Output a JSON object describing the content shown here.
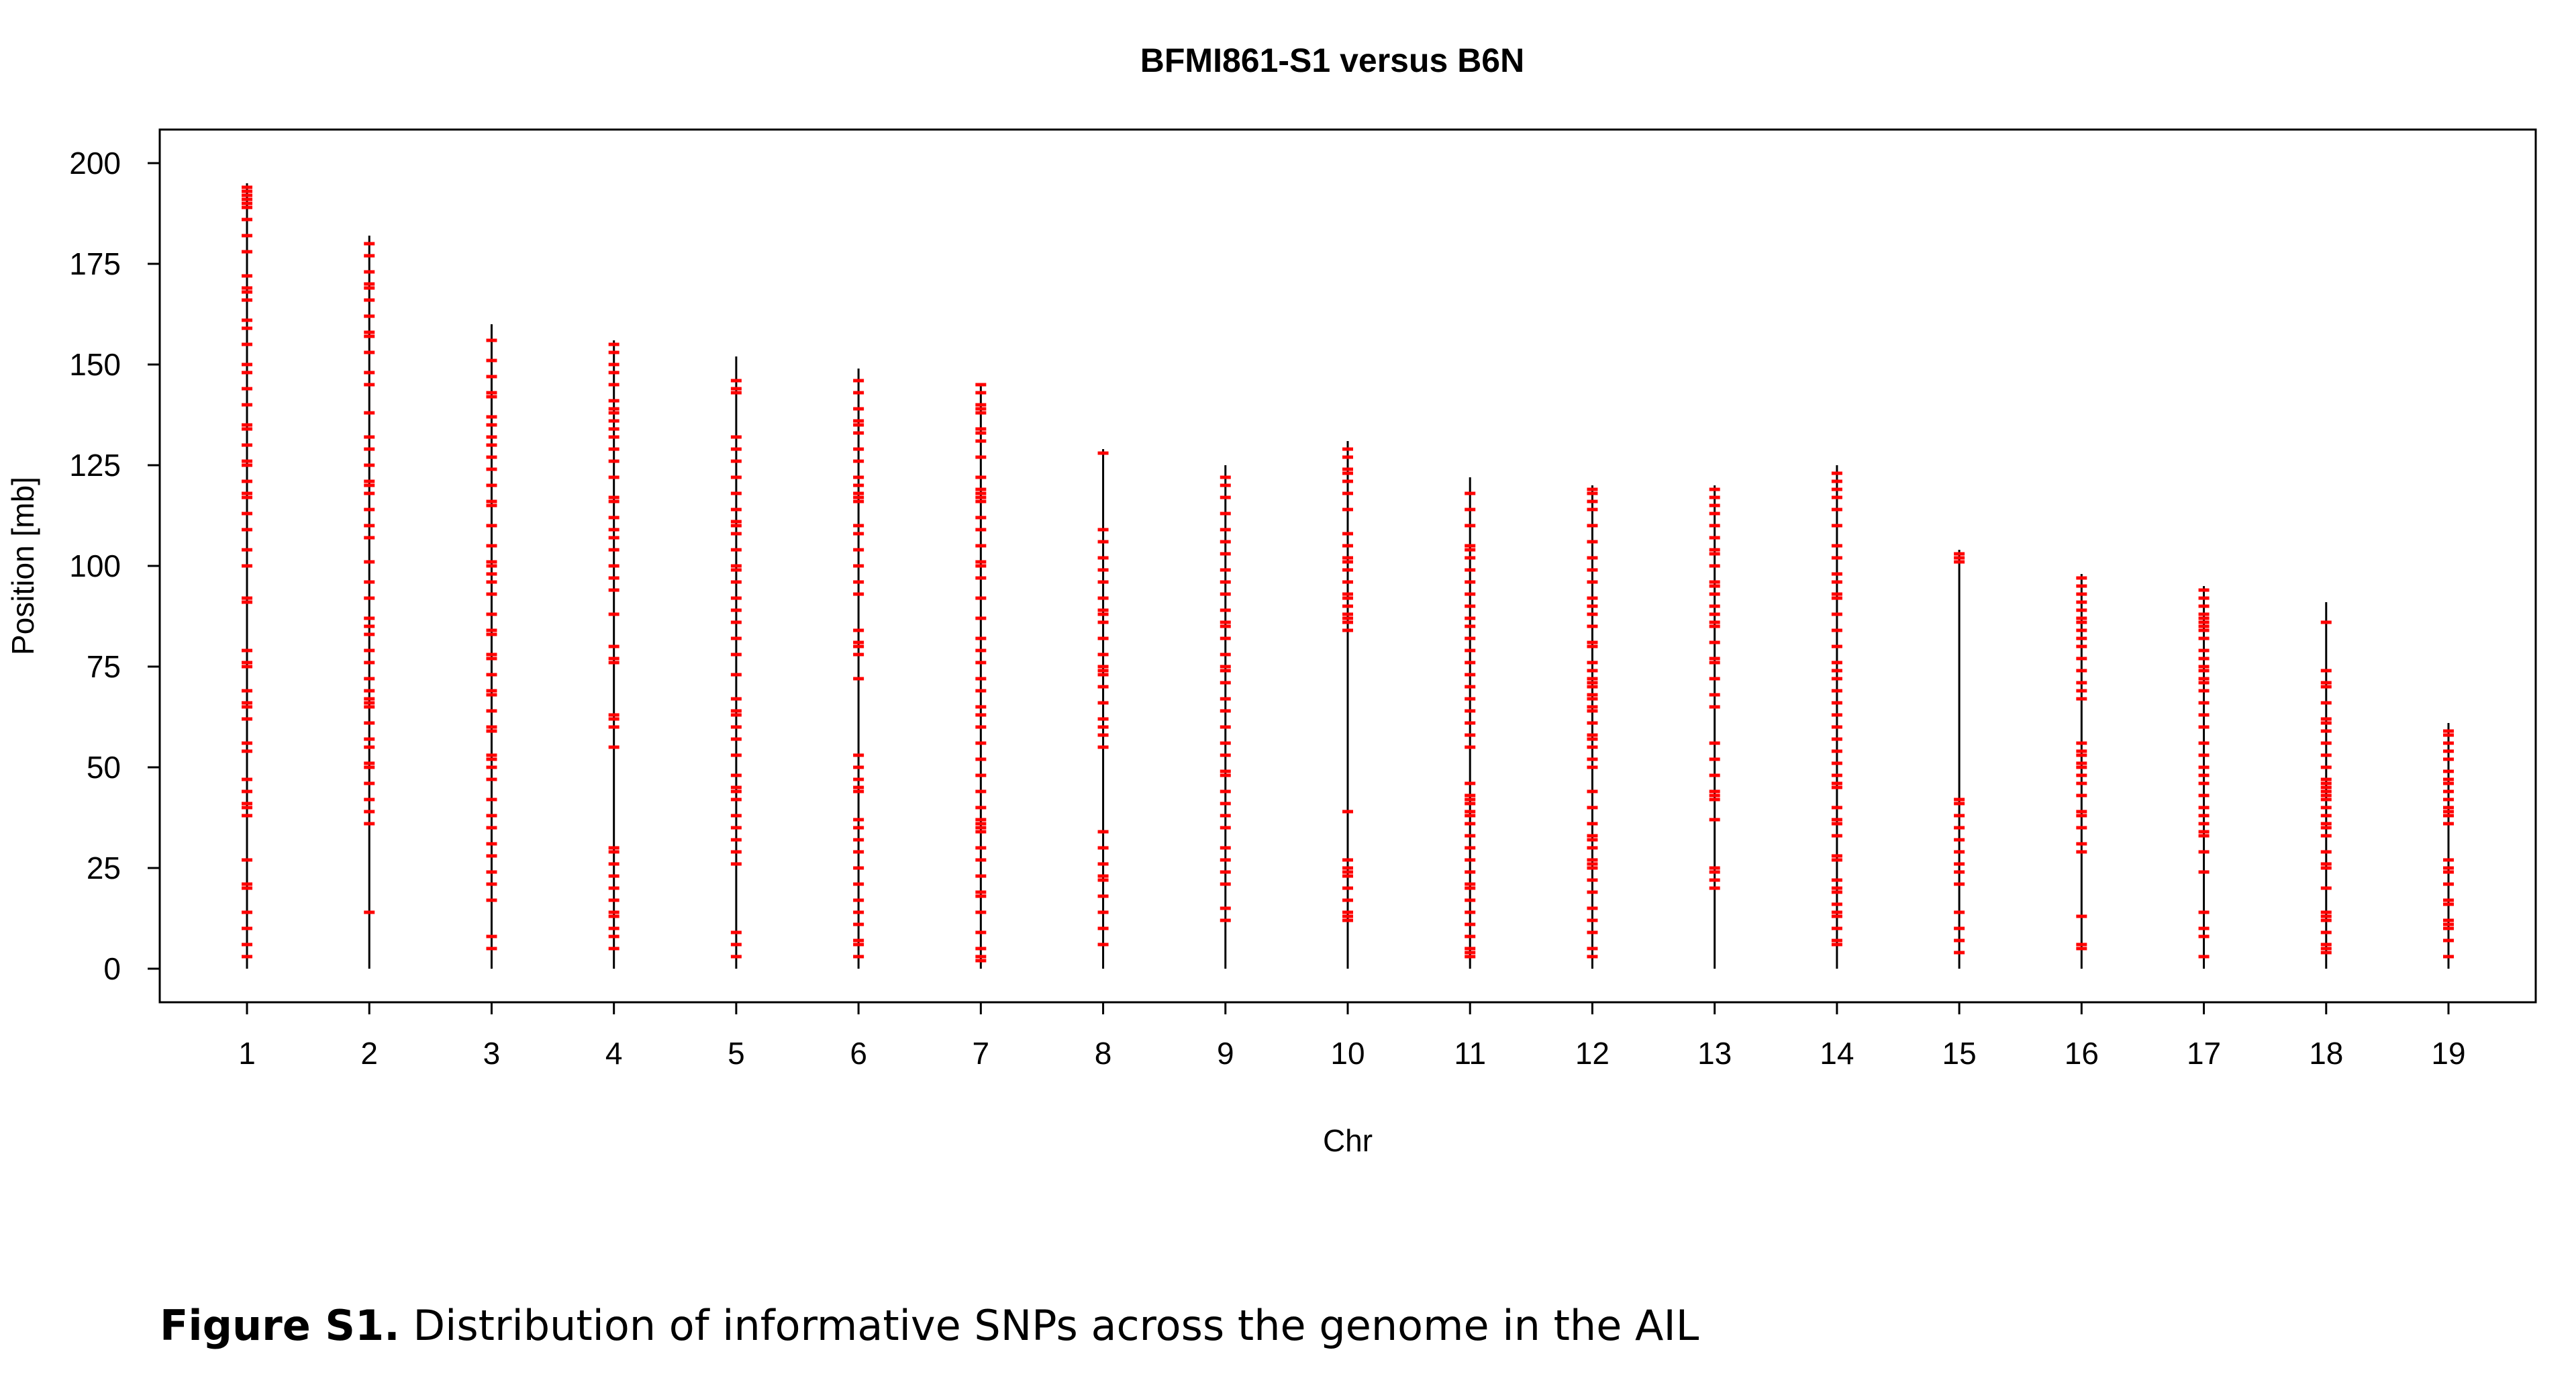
{
  "chart_data": {
    "type": "scatter",
    "title": "BFMI861-S1 versus B6N",
    "xlabel": "Chr",
    "ylabel": "Position [mb]",
    "ylim": [
      0,
      200
    ],
    "yticks": [
      0,
      25,
      50,
      75,
      100,
      125,
      150,
      175,
      200
    ],
    "grid": false,
    "legend": "none",
    "colors": {
      "chromosome": "#000000",
      "snp": "#ff0000"
    },
    "chromosomes": [
      {
        "chr": "1",
        "length": 195,
        "snps": [
          3,
          6,
          10,
          14,
          20,
          21,
          27,
          38,
          40,
          41,
          44,
          47,
          54,
          56,
          62,
          65,
          66,
          69,
          75,
          76,
          79,
          91,
          92,
          100,
          104,
          109,
          113,
          117,
          118,
          121,
          125,
          126,
          130,
          134,
          135,
          140,
          144,
          148,
          150,
          155,
          159,
          161,
          166,
          168,
          169,
          172,
          178,
          182,
          186,
          189,
          190,
          191,
          192,
          193,
          194
        ]
      },
      {
        "chr": "2",
        "length": 182,
        "snps": [
          14,
          36,
          39,
          42,
          46,
          50,
          51,
          55,
          57,
          61,
          65,
          66,
          67,
          69,
          72,
          76,
          79,
          83,
          85,
          87,
          92,
          96,
          101,
          107,
          110,
          114,
          118,
          120,
          121,
          125,
          129,
          132,
          138,
          145,
          148,
          153,
          157,
          158,
          162,
          166,
          169,
          170,
          173,
          177,
          180
        ]
      },
      {
        "chr": "3",
        "length": 160,
        "snps": [
          5,
          8,
          17,
          21,
          24,
          28,
          31,
          35,
          38,
          42,
          47,
          50,
          52,
          53,
          59,
          60,
          64,
          68,
          69,
          73,
          77,
          78,
          83,
          84,
          88,
          93,
          96,
          98,
          100,
          101,
          105,
          110,
          115,
          116,
          120,
          124,
          127,
          130,
          132,
          135,
          137,
          142,
          143,
          147,
          151,
          156
        ]
      },
      {
        "chr": "4",
        "length": 156,
        "snps": [
          5,
          8,
          10,
          13,
          14,
          17,
          20,
          23,
          26,
          29,
          30,
          55,
          60,
          62,
          63,
          76,
          77,
          80,
          88,
          94,
          97,
          100,
          104,
          107,
          109,
          112,
          116,
          117,
          122,
          126,
          129,
          132,
          134,
          136,
          138,
          139,
          141,
          145,
          148,
          150,
          153,
          155
        ]
      },
      {
        "chr": "5",
        "length": 152,
        "snps": [
          3,
          6,
          9,
          26,
          29,
          32,
          35,
          38,
          42,
          44,
          45,
          48,
          53,
          57,
          60,
          63,
          64,
          67,
          73,
          78,
          82,
          86,
          89,
          92,
          96,
          99,
          100,
          104,
          108,
          110,
          111,
          114,
          118,
          122,
          126,
          129,
          132,
          143,
          144,
          146
        ]
      },
      {
        "chr": "6",
        "length": 149,
        "snps": [
          3,
          6,
          7,
          11,
          14,
          17,
          21,
          25,
          29,
          32,
          35,
          37,
          44,
          45,
          47,
          50,
          53,
          72,
          78,
          80,
          81,
          84,
          93,
          96,
          100,
          104,
          108,
          110,
          116,
          117,
          118,
          120,
          122,
          126,
          129,
          133,
          135,
          136,
          139,
          143,
          146
        ]
      },
      {
        "chr": "7",
        "length": 145,
        "snps": [
          2,
          3,
          5,
          9,
          14,
          18,
          19,
          23,
          27,
          30,
          34,
          35,
          36,
          37,
          40,
          44,
          48,
          52,
          56,
          60,
          63,
          65,
          69,
          72,
          76,
          79,
          82,
          87,
          92,
          97,
          100,
          101,
          105,
          109,
          112,
          116,
          117,
          118,
          119,
          122,
          127,
          131,
          133,
          134,
          138,
          139,
          140,
          143,
          145
        ]
      },
      {
        "chr": "8",
        "length": 129,
        "snps": [
          6,
          10,
          14,
          18,
          22,
          23,
          26,
          30,
          34,
          55,
          58,
          60,
          62,
          66,
          70,
          73,
          74,
          75,
          78,
          82,
          86,
          88,
          89,
          92,
          96,
          99,
          102,
          106,
          109,
          128
        ]
      },
      {
        "chr": "9",
        "length": 125,
        "snps": [
          12,
          15,
          21,
          24,
          27,
          30,
          35,
          38,
          41,
          44,
          48,
          49,
          53,
          56,
          60,
          64,
          67,
          71,
          74,
          75,
          78,
          82,
          85,
          86,
          89,
          93,
          96,
          99,
          103,
          106,
          109,
          113,
          117,
          120,
          122
        ]
      },
      {
        "chr": "10",
        "length": 131,
        "snps": [
          12,
          13,
          14,
          17,
          20,
          23,
          24,
          25,
          27,
          39,
          84,
          86,
          87,
          88,
          90,
          92,
          93,
          96,
          99,
          101,
          102,
          105,
          108,
          114,
          118,
          121,
          123,
          124,
          127,
          129
        ]
      },
      {
        "chr": "11",
        "length": 122,
        "snps": [
          3,
          4,
          5,
          8,
          11,
          14,
          17,
          20,
          21,
          24,
          27,
          30,
          33,
          36,
          38,
          39,
          41,
          42,
          43,
          46,
          55,
          58,
          61,
          64,
          67,
          70,
          73,
          76,
          79,
          82,
          85,
          87,
          90,
          93,
          96,
          99,
          102,
          104,
          105,
          110,
          114,
          118
        ]
      },
      {
        "chr": "12",
        "length": 120,
        "snps": [
          3,
          5,
          9,
          12,
          15,
          19,
          22,
          25,
          26,
          27,
          30,
          32,
          33,
          36,
          40,
          44,
          50,
          52,
          55,
          57,
          58,
          61,
          64,
          65,
          67,
          68,
          70,
          71,
          72,
          74,
          76,
          80,
          81,
          85,
          88,
          90,
          92,
          96,
          99,
          102,
          106,
          110,
          114,
          116,
          118,
          119
        ]
      },
      {
        "chr": "13",
        "length": 120,
        "snps": [
          20,
          22,
          24,
          25,
          37,
          42,
          43,
          44,
          48,
          52,
          56,
          65,
          68,
          72,
          76,
          77,
          81,
          85,
          86,
          88,
          90,
          93,
          95,
          96,
          100,
          103,
          104,
          107,
          110,
          113,
          115,
          117,
          119
        ]
      },
      {
        "chr": "14",
        "length": 125,
        "snps": [
          6,
          7,
          10,
          13,
          14,
          16,
          19,
          20,
          22,
          27,
          28,
          33,
          36,
          37,
          40,
          45,
          46,
          48,
          51,
          54,
          57,
          60,
          63,
          66,
          69,
          72,
          74,
          76,
          80,
          84,
          88,
          92,
          93,
          96,
          98,
          102,
          105,
          110,
          114,
          117,
          119,
          121,
          123
        ]
      },
      {
        "chr": "15",
        "length": 104,
        "snps": [
          4,
          7,
          10,
          14,
          21,
          24,
          26,
          29,
          32,
          35,
          38,
          41,
          42,
          101,
          102,
          103
        ]
      },
      {
        "chr": "16",
        "length": 98,
        "snps": [
          5,
          6,
          13,
          29,
          31,
          35,
          38,
          39,
          43,
          46,
          48,
          50,
          51,
          53,
          54,
          56,
          67,
          69,
          71,
          74,
          77,
          80,
          82,
          84,
          86,
          87,
          89,
          91,
          93,
          95,
          97
        ]
      },
      {
        "chr": "17",
        "length": 95,
        "snps": [
          3,
          8,
          10,
          14,
          24,
          29,
          33,
          34,
          36,
          38,
          40,
          43,
          46,
          48,
          50,
          53,
          56,
          60,
          63,
          66,
          69,
          71,
          72,
          74,
          75,
          77,
          79,
          82,
          84,
          85,
          86,
          87,
          88,
          90,
          92,
          94
        ]
      },
      {
        "chr": "18",
        "length": 91,
        "snps": [
          4,
          5,
          6,
          9,
          12,
          13,
          14,
          20,
          25,
          26,
          29,
          33,
          35,
          36,
          38,
          40,
          42,
          43,
          44,
          45,
          46,
          47,
          50,
          53,
          56,
          59,
          61,
          62,
          66,
          70,
          71,
          74,
          86
        ]
      },
      {
        "chr": "19",
        "length": 61,
        "snps": [
          3,
          7,
          10,
          11,
          12,
          16,
          17,
          21,
          24,
          25,
          27,
          36,
          38,
          39,
          40,
          42,
          44,
          46,
          47,
          49,
          52,
          54,
          56,
          58,
          59
        ]
      }
    ]
  },
  "caption": {
    "label": "Figure S1.",
    "text": " Distribution of informative SNPs across the genome in the AIL"
  }
}
